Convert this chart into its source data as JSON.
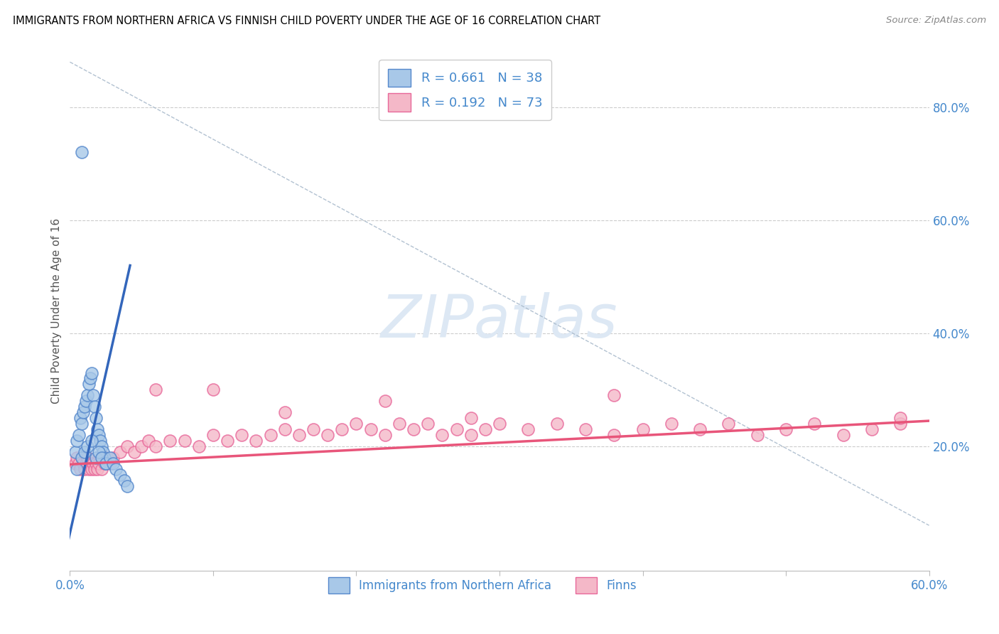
{
  "title": "IMMIGRANTS FROM NORTHERN AFRICA VS FINNISH CHILD POVERTY UNDER THE AGE OF 16 CORRELATION CHART",
  "source": "Source: ZipAtlas.com",
  "ylabel": "Child Poverty Under the Age of 16",
  "xlim": [
    0.0,
    0.6
  ],
  "ylim": [
    -0.02,
    0.9
  ],
  "xtick_positions": [
    0.0,
    0.1,
    0.2,
    0.3,
    0.4,
    0.5,
    0.6
  ],
  "xticklabels": [
    "0.0%",
    "",
    "",
    "",
    "",
    "",
    "60.0%"
  ],
  "ytick_right_vals": [
    0.2,
    0.4,
    0.6,
    0.8
  ],
  "ytick_right_labels": [
    "20.0%",
    "40.0%",
    "60.0%",
    "80.0%"
  ],
  "legend_r1": "R = 0.661",
  "legend_n1": "N = 38",
  "legend_r2": "R = 0.192",
  "legend_n2": "N = 73",
  "color_blue_fill": "#a8c8e8",
  "color_blue_edge": "#5588cc",
  "color_pink_fill": "#f4b8c8",
  "color_pink_edge": "#e8689a",
  "color_line_blue": "#3366bb",
  "color_line_pink": "#e8557a",
  "color_dash": "#aabbcc",
  "tick_label_color": "#4488cc",
  "watermark_color": "#dde8f4",
  "blue_scatter_x": [
    0.004,
    0.005,
    0.006,
    0.007,
    0.008,
    0.009,
    0.01,
    0.011,
    0.012,
    0.013,
    0.014,
    0.015,
    0.016,
    0.017,
    0.018,
    0.019,
    0.02,
    0.021,
    0.022,
    0.023,
    0.024,
    0.025,
    0.005,
    0.008,
    0.01,
    0.012,
    0.015,
    0.018,
    0.02,
    0.022,
    0.025,
    0.028,
    0.03,
    0.032,
    0.035,
    0.038,
    0.04,
    0.008
  ],
  "blue_scatter_y": [
    0.19,
    0.21,
    0.22,
    0.25,
    0.24,
    0.26,
    0.27,
    0.28,
    0.29,
    0.31,
    0.32,
    0.33,
    0.29,
    0.27,
    0.25,
    0.23,
    0.22,
    0.21,
    0.2,
    0.19,
    0.18,
    0.17,
    0.16,
    0.18,
    0.19,
    0.2,
    0.21,
    0.18,
    0.19,
    0.18,
    0.17,
    0.18,
    0.17,
    0.16,
    0.15,
    0.14,
    0.13,
    0.72
  ],
  "pink_scatter_x": [
    0.004,
    0.005,
    0.006,
    0.007,
    0.008,
    0.009,
    0.01,
    0.011,
    0.012,
    0.013,
    0.014,
    0.015,
    0.016,
    0.017,
    0.018,
    0.019,
    0.02,
    0.022,
    0.024,
    0.026,
    0.028,
    0.03,
    0.035,
    0.04,
    0.045,
    0.05,
    0.055,
    0.06,
    0.07,
    0.08,
    0.09,
    0.1,
    0.11,
    0.12,
    0.13,
    0.14,
    0.15,
    0.16,
    0.17,
    0.18,
    0.19,
    0.2,
    0.21,
    0.22,
    0.23,
    0.24,
    0.25,
    0.26,
    0.27,
    0.28,
    0.29,
    0.3,
    0.32,
    0.34,
    0.36,
    0.38,
    0.4,
    0.42,
    0.44,
    0.46,
    0.48,
    0.5,
    0.52,
    0.54,
    0.56,
    0.58,
    0.06,
    0.1,
    0.15,
    0.22,
    0.28,
    0.38,
    0.58
  ],
  "pink_scatter_y": [
    0.17,
    0.18,
    0.17,
    0.16,
    0.18,
    0.17,
    0.16,
    0.17,
    0.18,
    0.16,
    0.17,
    0.16,
    0.17,
    0.16,
    0.17,
    0.16,
    0.17,
    0.16,
    0.17,
    0.18,
    0.17,
    0.18,
    0.19,
    0.2,
    0.19,
    0.2,
    0.21,
    0.2,
    0.21,
    0.21,
    0.2,
    0.22,
    0.21,
    0.22,
    0.21,
    0.22,
    0.23,
    0.22,
    0.23,
    0.22,
    0.23,
    0.24,
    0.23,
    0.22,
    0.24,
    0.23,
    0.24,
    0.22,
    0.23,
    0.22,
    0.23,
    0.24,
    0.23,
    0.24,
    0.23,
    0.22,
    0.23,
    0.24,
    0.23,
    0.24,
    0.22,
    0.23,
    0.24,
    0.22,
    0.23,
    0.24,
    0.3,
    0.3,
    0.26,
    0.28,
    0.25,
    0.29,
    0.25
  ],
  "blue_line_x_start": -0.005,
  "blue_line_x_end": 0.042,
  "blue_line_y_start": -0.01,
  "blue_line_y_end": 0.52,
  "pink_line_x_start": 0.0,
  "pink_line_x_end": 0.6,
  "pink_line_y_start": 0.168,
  "pink_line_y_end": 0.245,
  "dash_line_x": [
    0.0,
    0.6
  ],
  "dash_line_y": [
    0.88,
    0.06
  ]
}
